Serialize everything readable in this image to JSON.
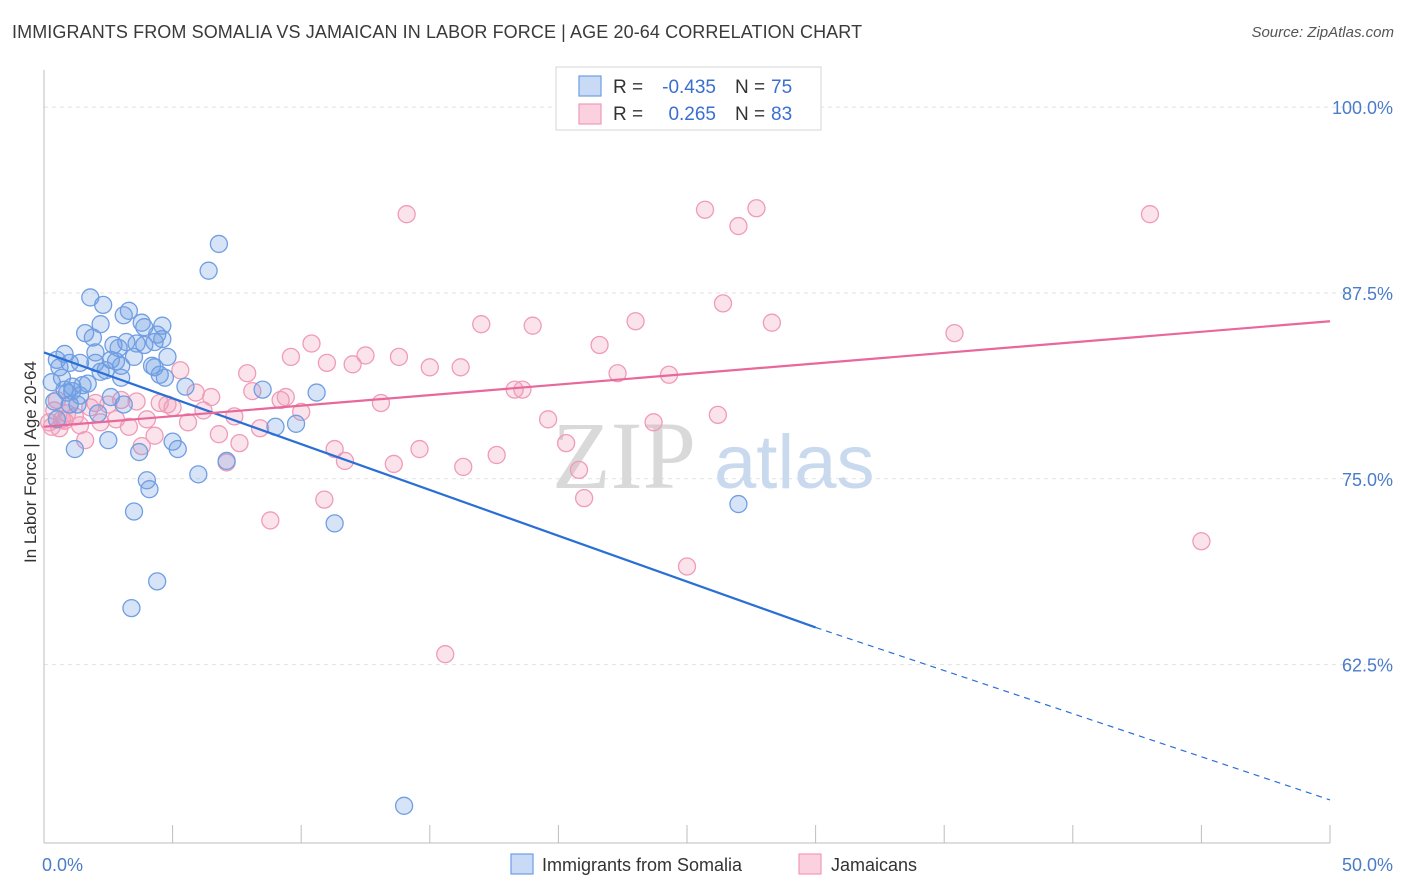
{
  "header": {
    "title": "IMMIGRANTS FROM SOMALIA VS JAMAICAN IN LABOR FORCE | AGE 20-64 CORRELATION CHART",
    "source": "Source: ZipAtlas.com"
  },
  "watermark": {
    "zip": "ZIP",
    "atlas": "atlas"
  },
  "legend": {
    "rows": [
      {
        "r_label": "R =",
        "r_value": "-0.435",
        "n_label": "N =",
        "n_value": "75"
      },
      {
        "r_label": "R =",
        "r_value": "0.265",
        "n_label": "N =",
        "n_value": "83"
      }
    ]
  },
  "chart_data": {
    "type": "scatter",
    "title": "IMMIGRANTS FROM SOMALIA VS JAMAICAN IN LABOR FORCE | AGE 20-64 CORRELATION CHART",
    "ylabel": "In Labor Force | Age 20-64",
    "xlim": [
      0,
      50
    ],
    "ylim": [
      50.5,
      102.5
    ],
    "x_tick_labels": [
      "0.0%",
      "50.0%"
    ],
    "y_ticks": [
      62.5,
      75.0,
      87.5,
      100.0
    ],
    "y_tick_labels": [
      "62.5%",
      "75.0%",
      "87.5%",
      "100.0%"
    ],
    "grid": true,
    "legend_position": "top-center",
    "colors": {
      "somalia": "#6f9ee3",
      "jamaica": "#f09bb8",
      "somalia_line": "#2a6fd6",
      "jamaica_line": "#e8689a",
      "tick": "#4a7cc9"
    },
    "series": [
      {
        "name": "Immigrants from Somalia",
        "x": [
          0.3,
          0.4,
          0.5,
          0.6,
          0.7,
          0.8,
          0.9,
          1.0,
          1.1,
          1.2,
          1.3,
          1.4,
          1.5,
          1.6,
          1.8,
          1.9,
          2.0,
          2.1,
          2.2,
          2.3,
          2.4,
          2.5,
          2.6,
          2.7,
          2.8,
          2.9,
          3.0,
          3.1,
          3.2,
          3.3,
          3.4,
          3.5,
          3.6,
          3.7,
          3.8,
          3.9,
          4.0,
          4.1,
          4.2,
          4.3,
          4.4,
          4.5,
          4.6,
          4.7,
          4.8,
          5.2,
          5.5,
          6.0,
          6.4,
          6.8,
          7.1,
          8.5,
          9.0,
          9.8,
          10.6,
          11.3,
          14.0,
          27.0,
          0.5,
          0.8,
          1.0,
          1.4,
          1.7,
          2.2,
          2.6,
          3.1,
          3.5,
          3.9,
          4.3,
          4.6,
          5.0,
          1.1,
          2.0,
          3.0,
          4.4
        ],
        "y": [
          81.5,
          80.2,
          83.0,
          82.5,
          81.8,
          83.4,
          80.8,
          82.8,
          81.2,
          77.0,
          80.0,
          80.6,
          81.3,
          84.8,
          87.2,
          84.5,
          82.8,
          79.4,
          85.4,
          86.7,
          82.3,
          77.6,
          83.0,
          84.0,
          82.9,
          83.8,
          82.6,
          86.0,
          84.2,
          86.3,
          66.3,
          72.8,
          84.1,
          76.8,
          85.5,
          85.2,
          74.9,
          74.3,
          82.6,
          84.2,
          68.1,
          82.0,
          85.3,
          81.8,
          83.2,
          77.0,
          81.2,
          75.3,
          89.0,
          90.8,
          76.2,
          81.0,
          78.5,
          78.7,
          80.8,
          72.0,
          53.0,
          73.3,
          79.0,
          81.0,
          80.0,
          82.8,
          81.4,
          82.2,
          80.5,
          80.0,
          83.2,
          84.0,
          82.5,
          84.4,
          77.5,
          80.9,
          83.5,
          81.8,
          84.7
        ]
      },
      {
        "name": "Jamaicans",
        "x": [
          0.2,
          0.3,
          0.4,
          0.5,
          0.6,
          0.7,
          0.8,
          0.9,
          1.0,
          1.2,
          1.4,
          1.6,
          1.8,
          2.0,
          2.2,
          2.5,
          2.8,
          3.0,
          3.3,
          3.6,
          3.8,
          4.0,
          4.3,
          4.5,
          4.8,
          5.0,
          5.3,
          5.6,
          5.9,
          6.2,
          6.5,
          6.8,
          7.1,
          7.4,
          7.6,
          7.9,
          8.1,
          8.4,
          8.8,
          9.2,
          9.6,
          10.0,
          10.4,
          10.9,
          11.3,
          11.7,
          12.0,
          12.5,
          13.1,
          13.6,
          14.1,
          14.6,
          15.0,
          15.6,
          16.3,
          17.0,
          17.6,
          18.3,
          19.0,
          19.6,
          20.3,
          21.0,
          21.6,
          22.3,
          23.0,
          23.7,
          24.3,
          25.0,
          25.7,
          26.4,
          27.0,
          27.7,
          28.3,
          35.4,
          43.0,
          45.0,
          9.4,
          11.0,
          13.8,
          16.2,
          18.6,
          20.8,
          26.2
        ],
        "y": [
          78.8,
          78.5,
          79.6,
          80.3,
          78.4,
          79.0,
          78.9,
          79.4,
          80.0,
          79.2,
          78.6,
          77.6,
          79.8,
          80.1,
          78.8,
          80.0,
          79.0,
          80.3,
          78.5,
          80.2,
          77.2,
          79.0,
          77.9,
          80.1,
          80.0,
          79.8,
          82.3,
          78.8,
          80.8,
          79.6,
          80.5,
          78.0,
          76.1,
          79.2,
          77.4,
          82.1,
          80.9,
          78.4,
          72.2,
          80.3,
          83.2,
          79.5,
          84.1,
          73.6,
          77.0,
          76.2,
          82.7,
          83.3,
          80.1,
          76.0,
          92.8,
          77.0,
          82.5,
          63.2,
          75.8,
          85.4,
          76.6,
          81.0,
          85.3,
          79.0,
          77.4,
          73.7,
          84.0,
          82.1,
          85.6,
          78.8,
          82.0,
          69.1,
          93.1,
          86.8,
          92.0,
          93.2,
          85.5,
          84.8,
          92.8,
          70.8,
          80.5,
          82.8,
          83.2,
          82.5,
          81.0,
          75.6,
          79.3
        ]
      }
    ],
    "trendlines": [
      {
        "name": "Immigrants from Somalia",
        "x": [
          0,
          30,
          50
        ],
        "y": [
          83.5,
          65.0,
          53.4
        ],
        "solid_until": 30
      },
      {
        "name": "Jamaicans",
        "x": [
          0,
          50
        ],
        "y": [
          78.5,
          85.6
        ],
        "solid_until": 50
      }
    ]
  }
}
